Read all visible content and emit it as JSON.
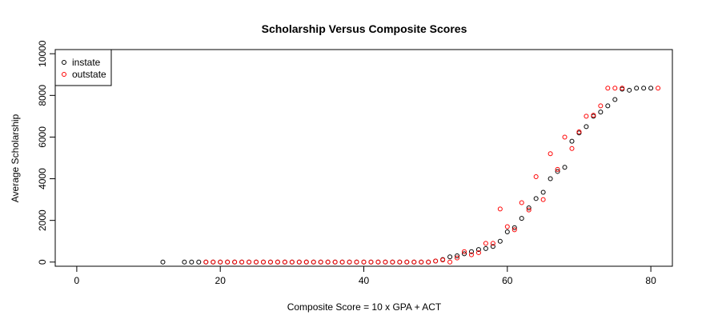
{
  "chart_data": {
    "type": "scatter",
    "title": "Scholarship Versus Composite Scores",
    "xlabel": "Composite Score = 10 x GPA + ACT",
    "ylabel": "Average Scholarship",
    "xlim": [
      -3,
      83
    ],
    "ylim": [
      -200,
      10200
    ],
    "x_ticks": [
      0,
      20,
      40,
      60,
      80
    ],
    "y_ticks": [
      0,
      2000,
      4000,
      6000,
      8000,
      10000
    ],
    "grid": false,
    "legend_position": "top-left",
    "series": [
      {
        "name": "instate",
        "color": "#000000",
        "x": [
          12,
          15,
          16,
          17,
          18,
          19,
          20,
          21,
          22,
          23,
          24,
          25,
          26,
          27,
          28,
          29,
          30,
          31,
          32,
          33,
          34,
          35,
          36,
          37,
          38,
          39,
          40,
          41,
          42,
          43,
          44,
          45,
          46,
          47,
          48,
          49,
          50,
          51,
          52,
          53,
          54,
          55,
          56,
          57,
          58,
          59,
          60,
          61,
          62,
          63,
          64,
          65,
          66,
          67,
          68,
          69,
          70,
          71,
          72,
          73,
          74,
          75,
          76,
          77,
          78,
          79,
          80
        ],
        "y": [
          0,
          0,
          0,
          0,
          0,
          0,
          0,
          0,
          0,
          0,
          0,
          0,
          0,
          0,
          0,
          0,
          0,
          0,
          0,
          0,
          0,
          0,
          0,
          0,
          0,
          0,
          0,
          0,
          0,
          0,
          0,
          0,
          0,
          0,
          0,
          0,
          50,
          120,
          250,
          300,
          400,
          500,
          600,
          650,
          750,
          1000,
          1450,
          1650,
          2100,
          2600,
          3050,
          3350,
          4000,
          4350,
          4550,
          5800,
          6200,
          6500,
          7000,
          7200,
          7500,
          7800,
          8300,
          8250,
          8350,
          8350,
          8350
        ]
      },
      {
        "name": "outstate",
        "color": "#ff0000",
        "x": [
          18,
          19,
          20,
          21,
          22,
          23,
          24,
          25,
          26,
          27,
          28,
          29,
          30,
          31,
          32,
          33,
          34,
          35,
          36,
          37,
          38,
          39,
          40,
          41,
          42,
          43,
          44,
          45,
          46,
          47,
          48,
          49,
          50,
          51,
          52,
          53,
          54,
          55,
          56,
          57,
          58,
          59,
          60,
          61,
          62,
          63,
          64,
          65,
          66,
          67,
          68,
          69,
          70,
          71,
          72,
          73,
          74,
          75,
          76,
          81
        ],
        "y": [
          0,
          0,
          0,
          0,
          0,
          0,
          0,
          0,
          0,
          0,
          0,
          0,
          0,
          0,
          0,
          0,
          0,
          0,
          0,
          0,
          0,
          0,
          0,
          0,
          0,
          0,
          0,
          0,
          0,
          0,
          0,
          0,
          50,
          100,
          0,
          200,
          500,
          350,
          450,
          900,
          900,
          2550,
          1700,
          1550,
          2850,
          2500,
          4100,
          3000,
          5200,
          4450,
          6000,
          5450,
          6250,
          7000,
          7050,
          7500,
          8350,
          8350,
          8350,
          8350
        ]
      }
    ]
  }
}
